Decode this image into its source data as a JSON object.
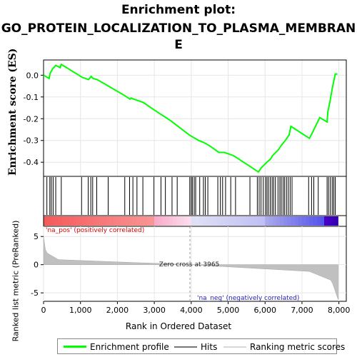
{
  "title_line1": "Enrichment plot:",
  "title_line2": "GO_PROTEIN_LOCALIZATION_TO_PLASMA_MEMBRAN",
  "title_line3": "E",
  "chart_data": {
    "type": "line",
    "es_panel": {
      "ylabel": "Enrichment score (ES)",
      "yticks": [
        0.0,
        -0.1,
        -0.2,
        -0.3,
        -0.4
      ],
      "ytick_labels": [
        "0.0",
        "-0.1",
        "-0.2",
        "-0.3",
        "-0.4"
      ],
      "ylim": [
        -0.465,
        0.07
      ],
      "series": [
        {
          "name": "Enrichment profile",
          "color": "#00ff00",
          "x": [
            0,
            150,
            180,
            250,
            330,
            450,
            480,
            1050,
            1220,
            1290,
            1340,
            1450,
            1760,
            2210,
            2340,
            2370,
            2440,
            2700,
            3000,
            3450,
            3950,
            4200,
            4350,
            4500,
            4750,
            4900,
            5150,
            5600,
            5820,
            5900,
            6050,
            6150,
            6200,
            6350,
            6450,
            6550,
            6650,
            6700,
            7200,
            7280,
            7480,
            7680,
            7700,
            7760,
            7820,
            7900,
            7960
          ],
          "y": [
            0.0,
            -0.015,
            0.01,
            0.03,
            0.045,
            0.035,
            0.05,
            -0.01,
            -0.02,
            -0.005,
            -0.015,
            -0.02,
            -0.05,
            -0.095,
            -0.11,
            -0.105,
            -0.11,
            -0.125,
            -0.16,
            -0.21,
            -0.275,
            -0.3,
            -0.31,
            -0.325,
            -0.355,
            -0.355,
            -0.37,
            -0.42,
            -0.445,
            -0.425,
            -0.4,
            -0.385,
            -0.37,
            -0.345,
            -0.32,
            -0.3,
            -0.275,
            -0.235,
            -0.29,
            -0.265,
            -0.195,
            -0.215,
            -0.17,
            -0.12,
            -0.06,
            0.005,
            0.005
          ]
        }
      ]
    },
    "hits_panel": {
      "legend_label": "Hits",
      "hits": [
        90,
        170,
        210,
        260,
        330,
        480,
        1030,
        1210,
        1280,
        1330,
        1440,
        1750,
        2200,
        2330,
        2420,
        2530,
        2690,
        2990,
        3180,
        3300,
        3480,
        3620,
        3960,
        4000,
        4030,
        4080,
        4120,
        4230,
        4330,
        4380,
        4450,
        4720,
        4790,
        4850,
        4930,
        5070,
        5200,
        5590,
        5790,
        5840,
        5890,
        5950,
        6010,
        6050,
        6090,
        6140,
        6190,
        6230,
        6280,
        6350,
        6400,
        6440,
        6490,
        6530,
        6580,
        6630,
        6680,
        6730,
        7180,
        7260,
        7320,
        7440,
        7680,
        7720,
        7770,
        7820,
        7860,
        7900
      ]
    },
    "ranked_panel": {
      "ylabel": "Ranked list metric (PreRanked)",
      "yticks": [
        5,
        0,
        -5
      ],
      "ytick_labels": [
        "5",
        "0",
        "-5"
      ],
      "ylim": [
        -6.5,
        6.8
      ],
      "legend_label": "Ranking metric scores",
      "zero_cross": 3965,
      "zero_cross_label": "Zero cross at 3965",
      "pos_label": "'na_pos' (positively correlated)",
      "neg_label": "'na_neg' (negatively correlated)"
    },
    "x_axis": {
      "xlabel": "Rank in Ordered Dataset",
      "xticks": [
        0,
        1000,
        2000,
        3000,
        4000,
        5000,
        6000,
        7000,
        8000
      ],
      "xtick_labels": [
        "0",
        "1,000",
        "2,000",
        "3,000",
        "4,000",
        "5,000",
        "6,000",
        "7,000",
        "8,000"
      ],
      "xlim": [
        0,
        8200
      ],
      "n_genes": 7980
    }
  },
  "legend": {
    "profile_label": "Enrichment profile",
    "hits_label": "Hits",
    "ranking_label": "Ranking metric scores"
  }
}
